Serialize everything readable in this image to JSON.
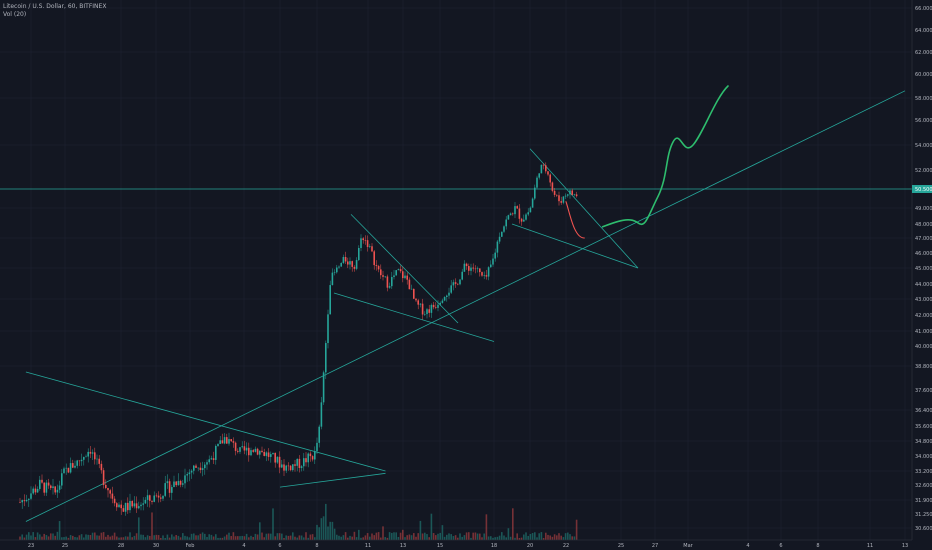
{
  "header": {
    "title": "Litecoin / U.S. Dollar, 60, BITFINEX",
    "volume_label": "Vol (20)"
  },
  "colors": {
    "background": "#131722",
    "grid": "#1f2433",
    "up": "#26a69a",
    "down": "#ef5350",
    "trendline": "#26a69a",
    "projection_up": "#2ebd6e",
    "projection_down": "#ef5350",
    "price_tag": "#26a69a"
  },
  "chart_data": {
    "type": "candlestick",
    "title": "Litecoin / U.S. Dollar, 60, BITFINEX",
    "price_axis_ticks": [
      "66.000",
      "64.000",
      "62.000",
      "60.000",
      "58.000",
      "56.000",
      "54.000",
      "52.000",
      "49.000",
      "48.000",
      "47.000",
      "46.000",
      "45.000",
      "44.000",
      "43.000",
      "42.000",
      "41.000",
      "40.000",
      "38.800",
      "37.600",
      "36.400",
      "35.600",
      "34.800",
      "34.000",
      "33.200",
      "32.600",
      "31.900",
      "31.250",
      "30.600"
    ],
    "price_tag_value": "50.500",
    "time_axis_ticks": [
      "23",
      "25",
      "28",
      "30",
      "Feb",
      "4",
      "6",
      "8",
      "11",
      "13",
      "15",
      "18",
      "20",
      "22",
      "25",
      "27",
      "Mar",
      "4",
      "6",
      "8",
      "11",
      "13"
    ],
    "trend_lines": [
      {
        "name": "long-term-support",
        "from": {
          "date": "Jan 22",
          "price": 30.9
        },
        "to": {
          "date": "Mar 13",
          "price": 58.6
        }
      },
      {
        "name": "january-resistance",
        "from": {
          "date": "Jan 22",
          "price": 38.5
        },
        "to": {
          "date": "Feb 12",
          "price": 33.2
        }
      },
      {
        "name": "january-triangle-low",
        "from": {
          "date": "Feb 6",
          "price": 32.5
        },
        "to": {
          "date": "Feb 12",
          "price": 33.1
        }
      },
      {
        "name": "february-triangle-upper",
        "from": {
          "date": "Feb 10",
          "price": 48.6
        },
        "to": {
          "date": "Feb 16",
          "price": 41.5
        }
      },
      {
        "name": "february-triangle-lower",
        "from": {
          "date": "Feb 9",
          "price": 43.4
        },
        "to": {
          "date": "Feb 18",
          "price": 40.3
        }
      },
      {
        "name": "wedge-upper",
        "from": {
          "date": "Feb 20",
          "price": 53.7
        },
        "to": {
          "date": "Feb 26",
          "price": 45.0
        }
      },
      {
        "name": "wedge-lower",
        "from": {
          "date": "Feb 19",
          "price": 48.0
        },
        "to": {
          "date": "Feb 26",
          "price": 45.0
        }
      },
      {
        "name": "horizontal-resistance",
        "price": 50.5
      }
    ],
    "projections": [
      {
        "name": "projected-pullback",
        "direction": "down",
        "from": {
          "date": "Feb 22",
          "price": 49.5
        },
        "to": {
          "date": "Feb 23",
          "price": 47.0
        }
      },
      {
        "name": "projected-rally",
        "direction": "up",
        "from": {
          "date": "Feb 24",
          "price": 47.8
        },
        "to": {
          "date": "Mar 3",
          "price": 59.0
        }
      }
    ],
    "grid": true,
    "legend": "top-left"
  }
}
